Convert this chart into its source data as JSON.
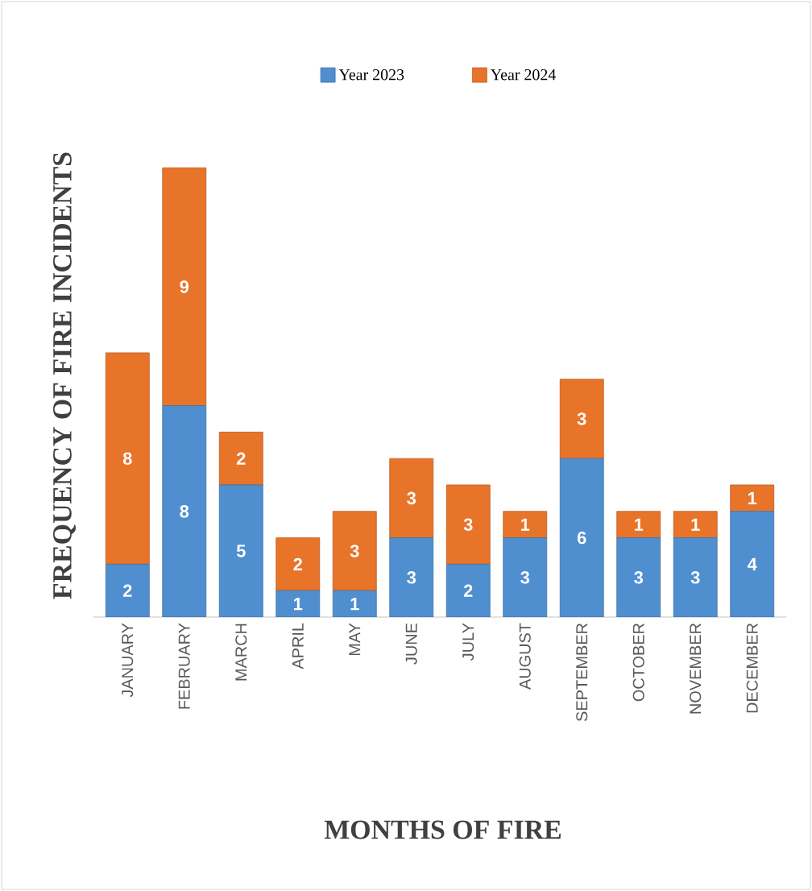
{
  "chart_data": {
    "type": "bar",
    "stacked": true,
    "data_labels": true,
    "legend": "top",
    "xlabel": "MONTHS OF FIRE",
    "ylabel": "FREQUENCY OF FIRE INCIDENTS",
    "categories": [
      "JANUARY",
      "FEBRUARY",
      "MARCH",
      "APRIL",
      "MAY",
      "JUNE",
      "JULY",
      "AUGUST",
      "SEPTEMBER",
      "OCTOBER",
      "NOVEMBER",
      "DECEMBER"
    ],
    "series": [
      {
        "name": "Year 2023",
        "color": "#4f8fd0",
        "values": [
          2,
          8,
          5,
          1,
          1,
          3,
          2,
          3,
          6,
          3,
          3,
          4
        ]
      },
      {
        "name": "Year 2024",
        "color": "#e8742a",
        "values": [
          8,
          9,
          2,
          2,
          3,
          3,
          3,
          1,
          3,
          1,
          1,
          1
        ]
      }
    ]
  }
}
